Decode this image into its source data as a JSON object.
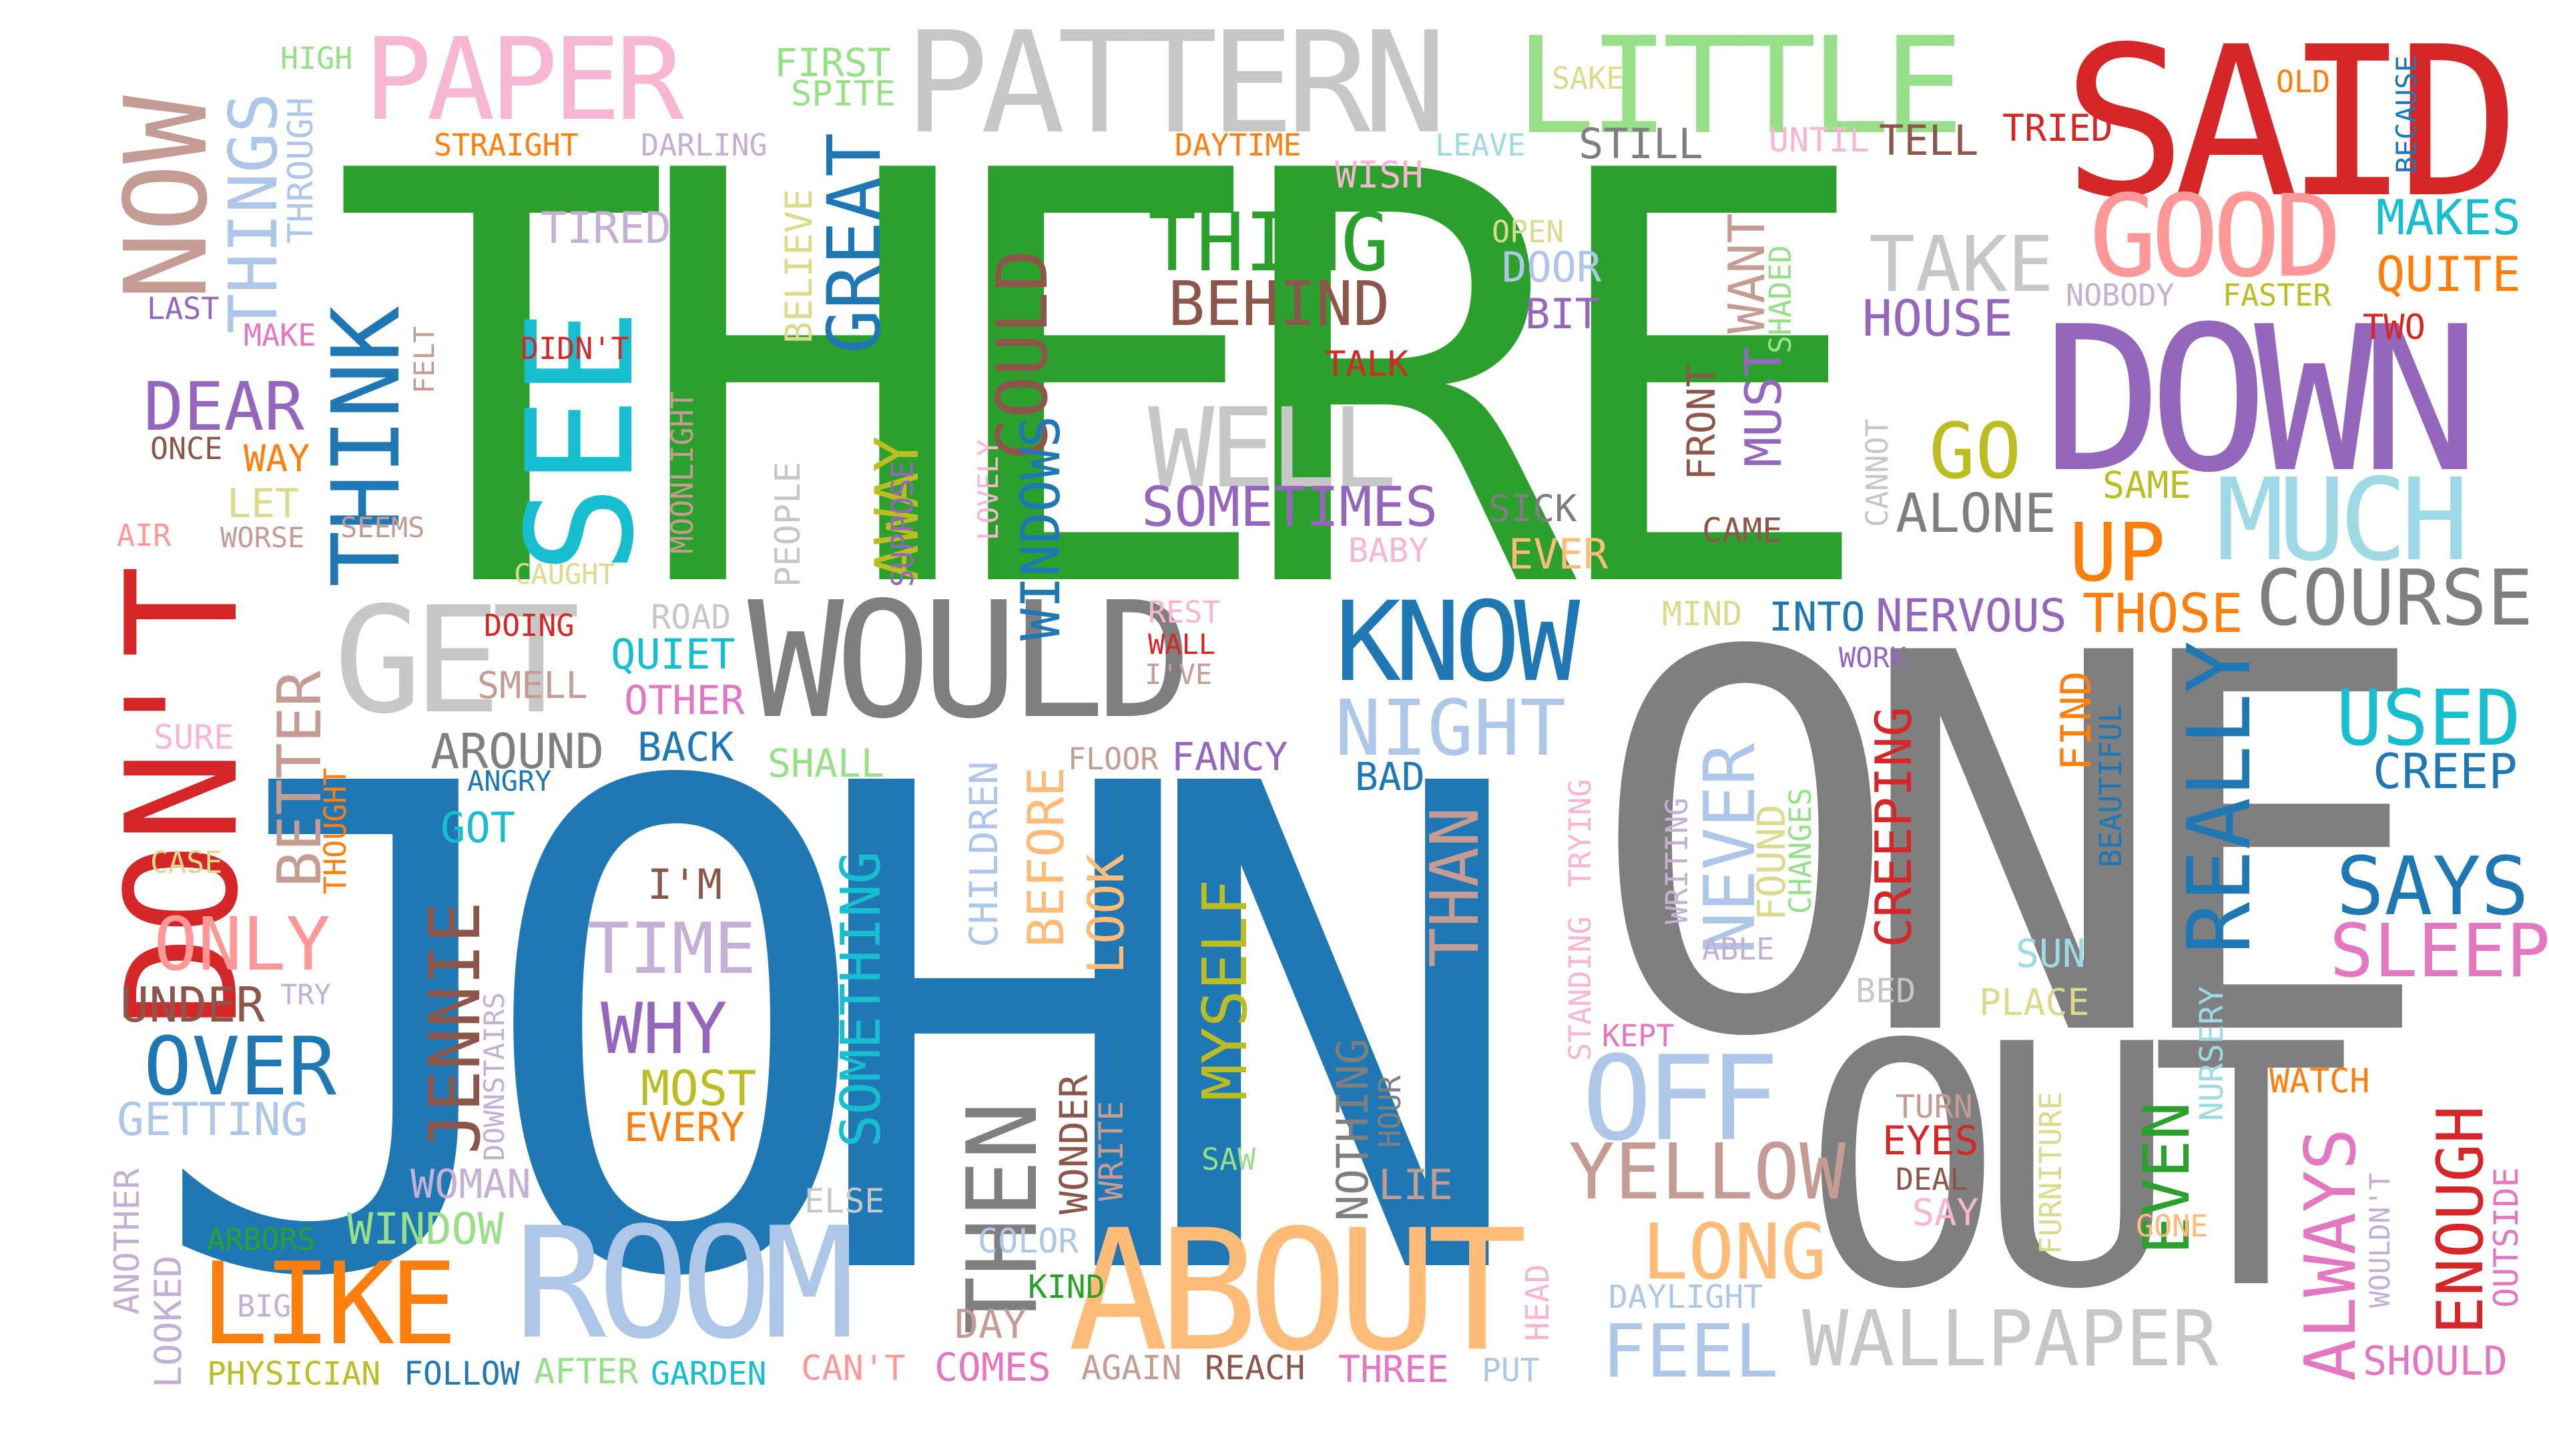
{
  "palette": {
    "green": "#2ca02c",
    "blue": "#1f77b4",
    "gray": "#7f7f7f",
    "red": "#d62728",
    "purple": "#9467bd",
    "brown": "#8c564b",
    "cyan": "#17becf",
    "olive": "#bcbd22",
    "pink": "#e377c2",
    "orange": "#ff7f0e"
  },
  "words": [
    {
      "text": "THERE",
      "color": "#2ca02c"
    },
    {
      "text": "JOHN",
      "color": "#1f77b4"
    },
    {
      "text": "ONE",
      "color": "#7f7f7f"
    },
    {
      "text": "OUT",
      "color": "#7f7f7f"
    },
    {
      "text": "SAID",
      "color": "#d62728"
    },
    {
      "text": "DOWN",
      "color": "#9467bd"
    },
    {
      "text": "DON'T",
      "color": "#d62728"
    },
    {
      "text": "PATTERN",
      "color": "#c7c7c7"
    },
    {
      "text": "LITTLE",
      "color": "#98df8a"
    },
    {
      "text": "PAPER",
      "color": "#f7b6d2"
    },
    {
      "text": "WOULD",
      "color": "#7f7f7f"
    },
    {
      "text": "ROOM",
      "color": "#aec7e8"
    },
    {
      "text": "ABOUT",
      "color": "#ffbb78"
    },
    {
      "text": "LIKE",
      "color": "#ff7f0e"
    },
    {
      "text": "SEE",
      "color": "#17becf"
    },
    {
      "text": "GET",
      "color": "#c7c7c7"
    },
    {
      "text": "KNOW",
      "color": "#1f77b4"
    },
    {
      "text": "NOW",
      "color": "#c49c94"
    },
    {
      "text": "THINK",
      "color": "#1f77b4"
    },
    {
      "text": "GOOD",
      "color": "#ff9896"
    },
    {
      "text": "MUCH",
      "color": "#9edae5"
    },
    {
      "text": "WELL",
      "color": "#c7c7c7"
    },
    {
      "text": "THING",
      "color": "#2ca02c"
    },
    {
      "text": "BEHIND",
      "color": "#8c564b"
    },
    {
      "text": "COURSE",
      "color": "#7f7f7f"
    },
    {
      "text": "THINGS",
      "color": "#aec7e8"
    },
    {
      "text": "JENNIE",
      "color": "#8c564b"
    },
    {
      "text": "THEN",
      "color": "#7f7f7f"
    },
    {
      "text": "NIGHT",
      "color": "#aec7e8"
    },
    {
      "text": "REALLY",
      "color": "#1f77b4"
    },
    {
      "text": "OFF",
      "color": "#aec7e8"
    },
    {
      "text": "YELLOW",
      "color": "#c49c94"
    },
    {
      "text": "WALLPAPER",
      "color": "#c7c7c7"
    },
    {
      "text": "FEEL",
      "color": "#aec7e8"
    },
    {
      "text": "LONG",
      "color": "#ffbb78"
    },
    {
      "text": "USED",
      "color": "#17becf"
    },
    {
      "text": "SAYS",
      "color": "#1f77b4"
    },
    {
      "text": "SLEEP",
      "color": "#e377c2"
    },
    {
      "text": "DEAR",
      "color": "#9467bd"
    },
    {
      "text": "ONLY",
      "color": "#ff9896"
    },
    {
      "text": "OVER",
      "color": "#1f77b4"
    },
    {
      "text": "GREAT",
      "color": "#1f77b4"
    },
    {
      "text": "COULD",
      "color": "#8c564b"
    },
    {
      "text": "WINDOWS",
      "color": "#1f77b4"
    },
    {
      "text": "SOMETIMES",
      "color": "#9467bd"
    },
    {
      "text": "TAKE",
      "color": "#c7c7c7"
    },
    {
      "text": "HOUSE",
      "color": "#9467bd"
    },
    {
      "text": "GO",
      "color": "#bcbd22"
    },
    {
      "text": "ALONE",
      "color": "#7f7f7f"
    },
    {
      "text": "UP",
      "color": "#ff7f0e"
    },
    {
      "text": "THOSE",
      "color": "#ff7f0e"
    },
    {
      "text": "NERVOUS",
      "color": "#9467bd"
    },
    {
      "text": "INTO",
      "color": "#1f77b4"
    },
    {
      "text": "TIME",
      "color": "#c5b0d5"
    },
    {
      "text": "WHY",
      "color": "#9467bd"
    },
    {
      "text": "MYSELF",
      "color": "#bcbd22"
    },
    {
      "text": "SOMETHING",
      "color": "#17becf"
    },
    {
      "text": "THAN",
      "color": "#c49c94"
    },
    {
      "text": "CREEPING",
      "color": "#d62728"
    },
    {
      "text": "NEVER",
      "color": "#aec7e8"
    },
    {
      "text": "AROUND",
      "color": "#7f7f7f"
    },
    {
      "text": "BACK",
      "color": "#1f77b4"
    },
    {
      "text": "QUIET",
      "color": "#17becf"
    },
    {
      "text": "OTHER",
      "color": "#e377c2"
    },
    {
      "text": "EVEN",
      "color": "#2ca02c"
    },
    {
      "text": "ALWAYS",
      "color": "#e377c2"
    },
    {
      "text": "ENOUGH",
      "color": "#d62728"
    },
    {
      "text": "WINDOW",
      "color": "#98df8a"
    },
    {
      "text": "WOMAN",
      "color": "#c5b0d5"
    },
    {
      "text": "GETTING",
      "color": "#aec7e8"
    },
    {
      "text": "UNDER",
      "color": "#8c564b"
    },
    {
      "text": "BETTER",
      "color": "#c49c94"
    },
    {
      "text": "AWAY",
      "color": "#bcbd22"
    },
    {
      "text": "MUST",
      "color": "#9467bd"
    },
    {
      "text": "WANT",
      "color": "#c49c94"
    },
    {
      "text": "FRONT",
      "color": "#8c564b"
    },
    {
      "text": "MAKES",
      "color": "#17becf"
    },
    {
      "text": "QUITE",
      "color": "#ff7f0e"
    },
    {
      "text": "CREEP",
      "color": "#1f77b4"
    },
    {
      "text": "MOST",
      "color": "#bcbd22"
    },
    {
      "text": "EVERY",
      "color": "#ff7f0e"
    },
    {
      "text": "I'M",
      "color": "#8c564b"
    },
    {
      "text": "LOOK",
      "color": "#ffbb78"
    },
    {
      "text": "BEFORE",
      "color": "#ffbb78"
    },
    {
      "text": "CHILDREN",
      "color": "#aec7e8"
    },
    {
      "text": "FANCY",
      "color": "#9467bd"
    },
    {
      "text": "BAD",
      "color": "#1f77b4"
    },
    {
      "text": "FLOOR",
      "color": "#c49c94"
    },
    {
      "text": "SHALL",
      "color": "#98df8a"
    },
    {
      "text": "GOT",
      "color": "#17becf"
    },
    {
      "text": "SMELL",
      "color": "#c49c94"
    },
    {
      "text": "DOING",
      "color": "#d62728"
    },
    {
      "text": "ROAD",
      "color": "#c7c7c7"
    },
    {
      "text": "NOTHING",
      "color": "#7f7f7f"
    },
    {
      "text": "HOUR",
      "color": "#7f7f7f"
    },
    {
      "text": "WONDER",
      "color": "#8c564b"
    },
    {
      "text": "WRITE",
      "color": "#c49c94"
    },
    {
      "text": "KIND",
      "color": "#2ca02c"
    },
    {
      "text": "COLOR",
      "color": "#aec7e8"
    },
    {
      "text": "DAY",
      "color": "#c49c94"
    },
    {
      "text": "COMES",
      "color": "#e377c2"
    },
    {
      "text": "AGAIN",
      "color": "#c49c94"
    },
    {
      "text": "REACH",
      "color": "#8c564b"
    },
    {
      "text": "THREE",
      "color": "#e377c2"
    },
    {
      "text": "PUT",
      "color": "#aec7e8"
    },
    {
      "text": "CAN'T",
      "color": "#ff9896"
    },
    {
      "text": "GARDEN",
      "color": "#17becf"
    },
    {
      "text": "AFTER",
      "color": "#98df8a"
    },
    {
      "text": "FOLLOW",
      "color": "#1f77b4"
    },
    {
      "text": "PHYSICIAN",
      "color": "#bcbd22"
    },
    {
      "text": "BIG",
      "color": "#c5b0d5"
    },
    {
      "text": "ARBORS",
      "color": "#2ca02c"
    },
    {
      "text": "ELSE",
      "color": "#c7c7c7"
    },
    {
      "text": "LIE",
      "color": "#c49c94"
    },
    {
      "text": "SAW",
      "color": "#98df8a"
    },
    {
      "text": "HEAD",
      "color": "#f7b6d2"
    },
    {
      "text": "DAYLIGHT",
      "color": "#aec7e8"
    },
    {
      "text": "TURN",
      "color": "#c49c94"
    },
    {
      "text": "EYES",
      "color": "#d62728"
    },
    {
      "text": "DEAL",
      "color": "#8c564b"
    },
    {
      "text": "SAY",
      "color": "#f7b6d2"
    },
    {
      "text": "FURNITURE",
      "color": "#dbdb8d"
    },
    {
      "text": "GONE",
      "color": "#ffbb78"
    },
    {
      "text": "WATCH",
      "color": "#ff7f0e"
    },
    {
      "text": "NURSERY",
      "color": "#9edae5"
    },
    {
      "text": "WOULDN'T",
      "color": "#c5b0d5"
    },
    {
      "text": "OUTSIDE",
      "color": "#e377c2"
    },
    {
      "text": "SHOULD",
      "color": "#e377c2"
    },
    {
      "text": "SUN",
      "color": "#9edae5"
    },
    {
      "text": "PLACE",
      "color": "#dbdb8d"
    },
    {
      "text": "BED",
      "color": "#c7c7c7"
    },
    {
      "text": "KEPT",
      "color": "#e377c2"
    },
    {
      "text": "ABLE",
      "color": "#c5b0d5"
    },
    {
      "text": "STANDING",
      "color": "#f7b6d2"
    },
    {
      "text": "TRYING",
      "color": "#f7b6d2"
    },
    {
      "text": "WRITING",
      "color": "#c5b0d5"
    },
    {
      "text": "FOUND",
      "color": "#dbdb8d"
    },
    {
      "text": "CHANGES",
      "color": "#98df8a"
    },
    {
      "text": "FIND",
      "color": "#ff7f0e"
    },
    {
      "text": "BEAUTIFUL",
      "color": "#1f77b4"
    },
    {
      "text": "WORK",
      "color": "#9467bd"
    },
    {
      "text": "MIND",
      "color": "#dbdb8d"
    },
    {
      "text": "CAME",
      "color": "#8c564b"
    },
    {
      "text": "CANNOT",
      "color": "#c7c7c7"
    },
    {
      "text": "EVER",
      "color": "#ffbb78"
    },
    {
      "text": "SICK",
      "color": "#7f7f7f"
    },
    {
      "text": "BABY",
      "color": "#f7b6d2"
    },
    {
      "text": "TALK",
      "color": "#d62728"
    },
    {
      "text": "BIT",
      "color": "#9467bd"
    },
    {
      "text": "DOOR",
      "color": "#aec7e8"
    },
    {
      "text": "OPEN",
      "color": "#dbdb8d"
    },
    {
      "text": "SHADED",
      "color": "#98df8a"
    },
    {
      "text": "STILL",
      "color": "#7f7f7f"
    },
    {
      "text": "TELL",
      "color": "#8c564b"
    },
    {
      "text": "UNTIL",
      "color": "#f7b6d2"
    },
    {
      "text": "TRIED",
      "color": "#d62728"
    },
    {
      "text": "OLD",
      "color": "#ff7f0e"
    },
    {
      "text": "BECAUSE",
      "color": "#1f77b4"
    },
    {
      "text": "NOBODY",
      "color": "#c5b0d5"
    },
    {
      "text": "FASTER",
      "color": "#bcbd22"
    },
    {
      "text": "TWO",
      "color": "#d62728"
    },
    {
      "text": "SAME",
      "color": "#bcbd22"
    },
    {
      "text": "SAKE",
      "color": "#dbdb8d"
    },
    {
      "text": "LEAVE",
      "color": "#9edae5"
    },
    {
      "text": "WISH",
      "color": "#f7b6d2"
    },
    {
      "text": "DAYTIME",
      "color": "#ff7f0e"
    },
    {
      "text": "DARLING",
      "color": "#c5b0d5"
    },
    {
      "text": "STRAIGHT",
      "color": "#ff7f0e"
    },
    {
      "text": "FIRST",
      "color": "#98df8a"
    },
    {
      "text": "SPITE",
      "color": "#98df8a"
    },
    {
      "text": "HIGH",
      "color": "#98df8a"
    },
    {
      "text": "THROUGH",
      "color": "#aec7e8"
    },
    {
      "text": "LAST",
      "color": "#9467bd"
    },
    {
      "text": "MAKE",
      "color": "#e377c2"
    },
    {
      "text": "FELT",
      "color": "#c49c94"
    },
    {
      "text": "DIDN'T",
      "color": "#d62728"
    },
    {
      "text": "TIRED",
      "color": "#c5b0d5"
    },
    {
      "text": "BELIEVE",
      "color": "#dbdb8d"
    },
    {
      "text": "ONCE",
      "color": "#8c564b"
    },
    {
      "text": "WAY",
      "color": "#ff7f0e"
    },
    {
      "text": "LET",
      "color": "#dbdb8d"
    },
    {
      "text": "AIR",
      "color": "#ff9896"
    },
    {
      "text": "WORSE",
      "color": "#c49c94"
    },
    {
      "text": "SEEMS",
      "color": "#c49c94"
    },
    {
      "text": "MOONLIGHT",
      "color": "#c49c94"
    },
    {
      "text": "PEOPLE",
      "color": "#c7c7c7"
    },
    {
      "text": "SUPPOSE",
      "color": "#9467bd"
    },
    {
      "text": "LOVELY",
      "color": "#f7b6d2"
    },
    {
      "text": "CAUGHT",
      "color": "#dbdb8d"
    },
    {
      "text": "REST",
      "color": "#f7b6d2"
    },
    {
      "text": "WALL",
      "color": "#d62728"
    },
    {
      "text": "I'VE",
      "color": "#c49c94"
    },
    {
      "text": "SURE",
      "color": "#f7b6d2"
    },
    {
      "text": "THOUGHT",
      "color": "#ff7f0e"
    },
    {
      "text": "CASE",
      "color": "#dbdb8d"
    },
    {
      "text": "ANGRY",
      "color": "#1f77b4"
    },
    {
      "text": "DOWNSTAIRS",
      "color": "#c5b0d5"
    },
    {
      "text": "TRY",
      "color": "#c5b0d5"
    },
    {
      "text": "ANOTHER",
      "color": "#c5b0d5"
    },
    {
      "text": "LOOKED",
      "color": "#c5b0d5"
    }
  ]
}
